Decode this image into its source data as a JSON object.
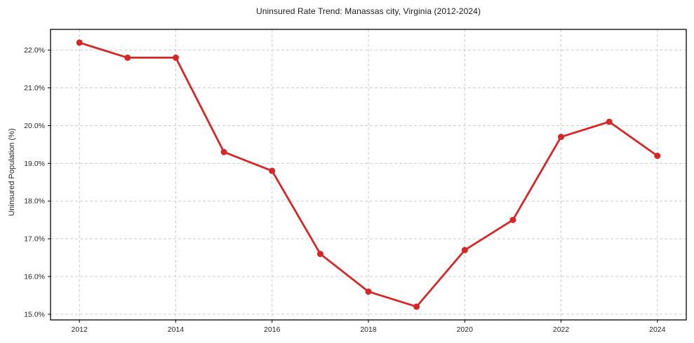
{
  "chart_data": {
    "type": "line",
    "title": "Uninsured Rate Trend: Manassas city, Virginia (2012-2024)",
    "xlabel": "",
    "ylabel": "Uninsured Population (%)",
    "x": [
      2012,
      2013,
      2014,
      2015,
      2016,
      2017,
      2018,
      2019,
      2020,
      2021,
      2022,
      2023,
      2024
    ],
    "values": [
      22.2,
      21.8,
      21.8,
      19.3,
      18.8,
      16.6,
      15.6,
      15.2,
      16.7,
      17.5,
      19.7,
      20.1,
      19.2
    ],
    "xticks": [
      2012,
      2014,
      2016,
      2018,
      2020,
      2022,
      2024
    ],
    "xtick_labels": [
      "2012",
      "2014",
      "2016",
      "2018",
      "2020",
      "2022",
      "2024"
    ],
    "yticks": [
      15,
      16,
      17,
      18,
      19,
      20,
      21,
      22
    ],
    "ytick_labels": [
      "15.0%",
      "16.0%",
      "17.0%",
      "18.0%",
      "19.0%",
      "20.0%",
      "21.0%",
      "22.0%"
    ],
    "xlim": [
      2011.4,
      2024.6
    ],
    "ylim": [
      14.85,
      22.55
    ],
    "grid": "dashed",
    "legend": "none",
    "marker": "circle",
    "colors": {
      "line": "#d62728",
      "grid": "#cccccc",
      "axis": "#000000",
      "text": "#262626",
      "background": "#ffffff"
    }
  }
}
